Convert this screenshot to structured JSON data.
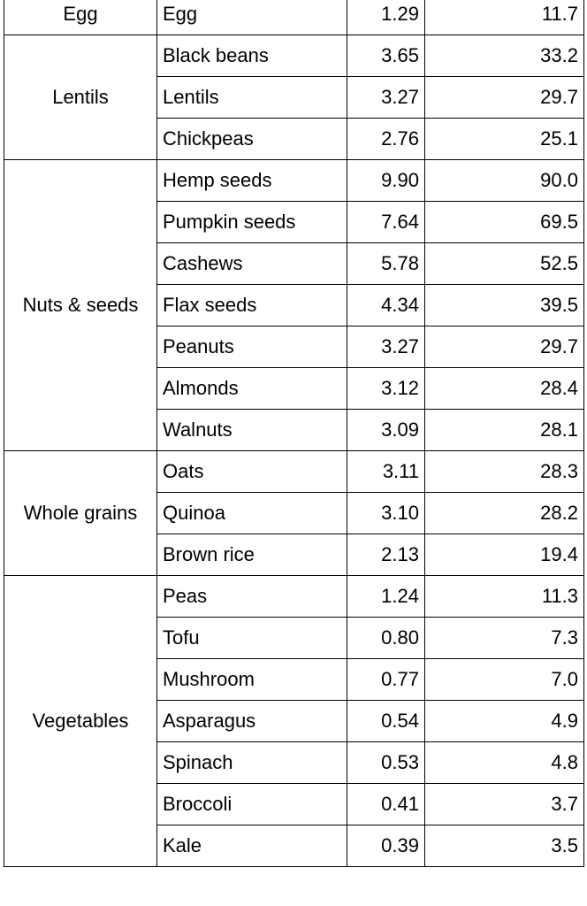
{
  "table": {
    "groups": [
      {
        "category": "Egg",
        "rows": [
          {
            "food": "Egg",
            "value_a": "1.29",
            "value_b": "11.7"
          }
        ]
      },
      {
        "category": "Lentils",
        "rows": [
          {
            "food": "Black beans",
            "value_a": "3.65",
            "value_b": "33.2"
          },
          {
            "food": "Lentils",
            "value_a": "3.27",
            "value_b": "29.7"
          },
          {
            "food": "Chickpeas",
            "value_a": "2.76",
            "value_b": "25.1"
          }
        ]
      },
      {
        "category": "Nuts & seeds",
        "rows": [
          {
            "food": "Hemp seeds",
            "value_a": "9.90",
            "value_b": "90.0"
          },
          {
            "food": "Pumpkin seeds",
            "value_a": "7.64",
            "value_b": "69.5"
          },
          {
            "food": "Cashews",
            "value_a": "5.78",
            "value_b": "52.5"
          },
          {
            "food": "Flax seeds",
            "value_a": "4.34",
            "value_b": "39.5"
          },
          {
            "food": "Peanuts",
            "value_a": "3.27",
            "value_b": "29.7"
          },
          {
            "food": "Almonds",
            "value_a": "3.12",
            "value_b": "28.4"
          },
          {
            "food": "Walnuts",
            "value_a": "3.09",
            "value_b": "28.1"
          }
        ]
      },
      {
        "category": "Whole grains",
        "rows": [
          {
            "food": "Oats",
            "value_a": "3.11",
            "value_b": "28.3"
          },
          {
            "food": "Quinoa",
            "value_a": "3.10",
            "value_b": "28.2"
          },
          {
            "food": "Brown rice",
            "value_a": "2.13",
            "value_b": "19.4"
          }
        ]
      },
      {
        "category": "Vegetables",
        "rows": [
          {
            "food": "Peas",
            "value_a": "1.24",
            "value_b": "11.3"
          },
          {
            "food": "Tofu",
            "value_a": "0.80",
            "value_b": "7.3"
          },
          {
            "food": "Mushroom",
            "value_a": "0.77",
            "value_b": "7.0"
          },
          {
            "food": "Asparagus",
            "value_a": "0.54",
            "value_b": "4.9"
          },
          {
            "food": "Spinach",
            "value_a": "0.53",
            "value_b": "4.8"
          },
          {
            "food": "Broccoli",
            "value_a": "0.41",
            "value_b": "3.7"
          },
          {
            "food": "Kale",
            "value_a": "0.39",
            "value_b": "3.5"
          }
        ]
      }
    ]
  }
}
